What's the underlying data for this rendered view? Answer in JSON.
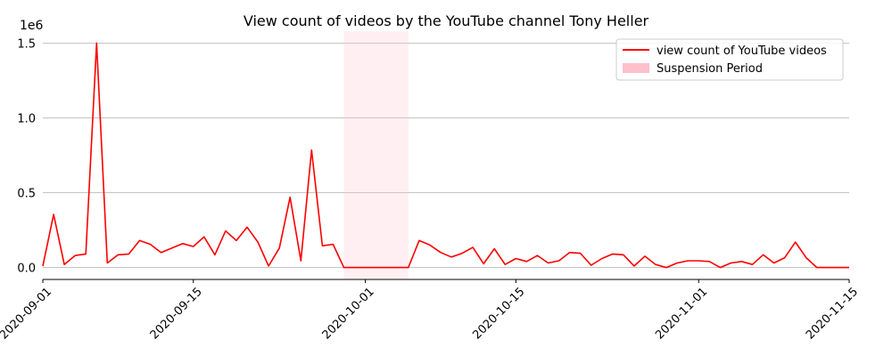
{
  "chart_data": {
    "type": "line",
    "title": "View count of videos by the YouTube channel Tony Heller",
    "xlabel": "",
    "ylabel": "",
    "y_offset_label": "1e6",
    "x_range": [
      "2020-09-01",
      "2020-11-15"
    ],
    "ylim": [
      -0.08,
      1.58
    ],
    "y_ticks": [
      0.0,
      0.5,
      1.0,
      1.5
    ],
    "y_tick_labels": [
      "0.0",
      "0.5",
      "1.0",
      "1.5"
    ],
    "x_ticks": [
      "2020-09-01",
      "2020-09-15",
      "2020-10-01",
      "2020-10-15",
      "2020-11-01",
      "2020-11-15"
    ],
    "grid": "horizontal",
    "legend_position": "top-right",
    "shaded_regions": [
      {
        "name": "Suspension Period",
        "start": "2020-09-29",
        "end": "2020-10-05",
        "color": "#ffc0cb",
        "opacity": 0.25
      }
    ],
    "series": [
      {
        "name": "view count of YouTube videos",
        "color": "#ff0000",
        "x": [
          "2020-09-01",
          "2020-09-02",
          "2020-09-03",
          "2020-09-04",
          "2020-09-05",
          "2020-09-06",
          "2020-09-07",
          "2020-09-08",
          "2020-09-09",
          "2020-09-10",
          "2020-09-11",
          "2020-09-12",
          "2020-09-13",
          "2020-09-14",
          "2020-09-15",
          "2020-09-16",
          "2020-09-17",
          "2020-09-18",
          "2020-09-19",
          "2020-09-20",
          "2020-09-21",
          "2020-09-22",
          "2020-09-23",
          "2020-09-24",
          "2020-09-25",
          "2020-09-26",
          "2020-09-27",
          "2020-09-28",
          "2020-09-29",
          "2020-09-30",
          "2020-10-01",
          "2020-10-02",
          "2020-10-03",
          "2020-10-04",
          "2020-10-05",
          "2020-10-06",
          "2020-10-07",
          "2020-10-08",
          "2020-10-09",
          "2020-10-10",
          "2020-10-11",
          "2020-10-12",
          "2020-10-13",
          "2020-10-14",
          "2020-10-15",
          "2020-10-16",
          "2020-10-17",
          "2020-10-18",
          "2020-10-19",
          "2020-10-20",
          "2020-10-21",
          "2020-10-22",
          "2020-10-23",
          "2020-10-24",
          "2020-10-25",
          "2020-10-26",
          "2020-10-27",
          "2020-10-28",
          "2020-10-29",
          "2020-10-30",
          "2020-10-31",
          "2020-11-01",
          "2020-11-02",
          "2020-11-03",
          "2020-11-04",
          "2020-11-05",
          "2020-11-06",
          "2020-11-07",
          "2020-11-08",
          "2020-11-09",
          "2020-11-10",
          "2020-11-11",
          "2020-11-12",
          "2020-11-13",
          "2020-11-14",
          "2020-11-15"
        ],
        "values": [
          0.01,
          0.355,
          0.02,
          0.08,
          0.09,
          1.5,
          0.03,
          0.085,
          0.09,
          0.18,
          0.155,
          0.1,
          0.13,
          0.16,
          0.14,
          0.205,
          0.085,
          0.245,
          0.18,
          0.27,
          0.17,
          0.01,
          0.13,
          0.47,
          0.045,
          0.785,
          0.145,
          0.155,
          0.0,
          0.0,
          0.0,
          0.0,
          0.0,
          0.0,
          0.0,
          0.18,
          0.15,
          0.1,
          0.07,
          0.095,
          0.135,
          0.025,
          0.125,
          0.02,
          0.06,
          0.04,
          0.08,
          0.03,
          0.045,
          0.1,
          0.095,
          0.015,
          0.06,
          0.09,
          0.085,
          0.01,
          0.075,
          0.02,
          0.0,
          0.03,
          0.045,
          0.045,
          0.04,
          0.0,
          0.03,
          0.04,
          0.02,
          0.085,
          0.03,
          0.065,
          0.17,
          0.065,
          0.0,
          0.0,
          0.0,
          0.0
        ]
      }
    ]
  }
}
